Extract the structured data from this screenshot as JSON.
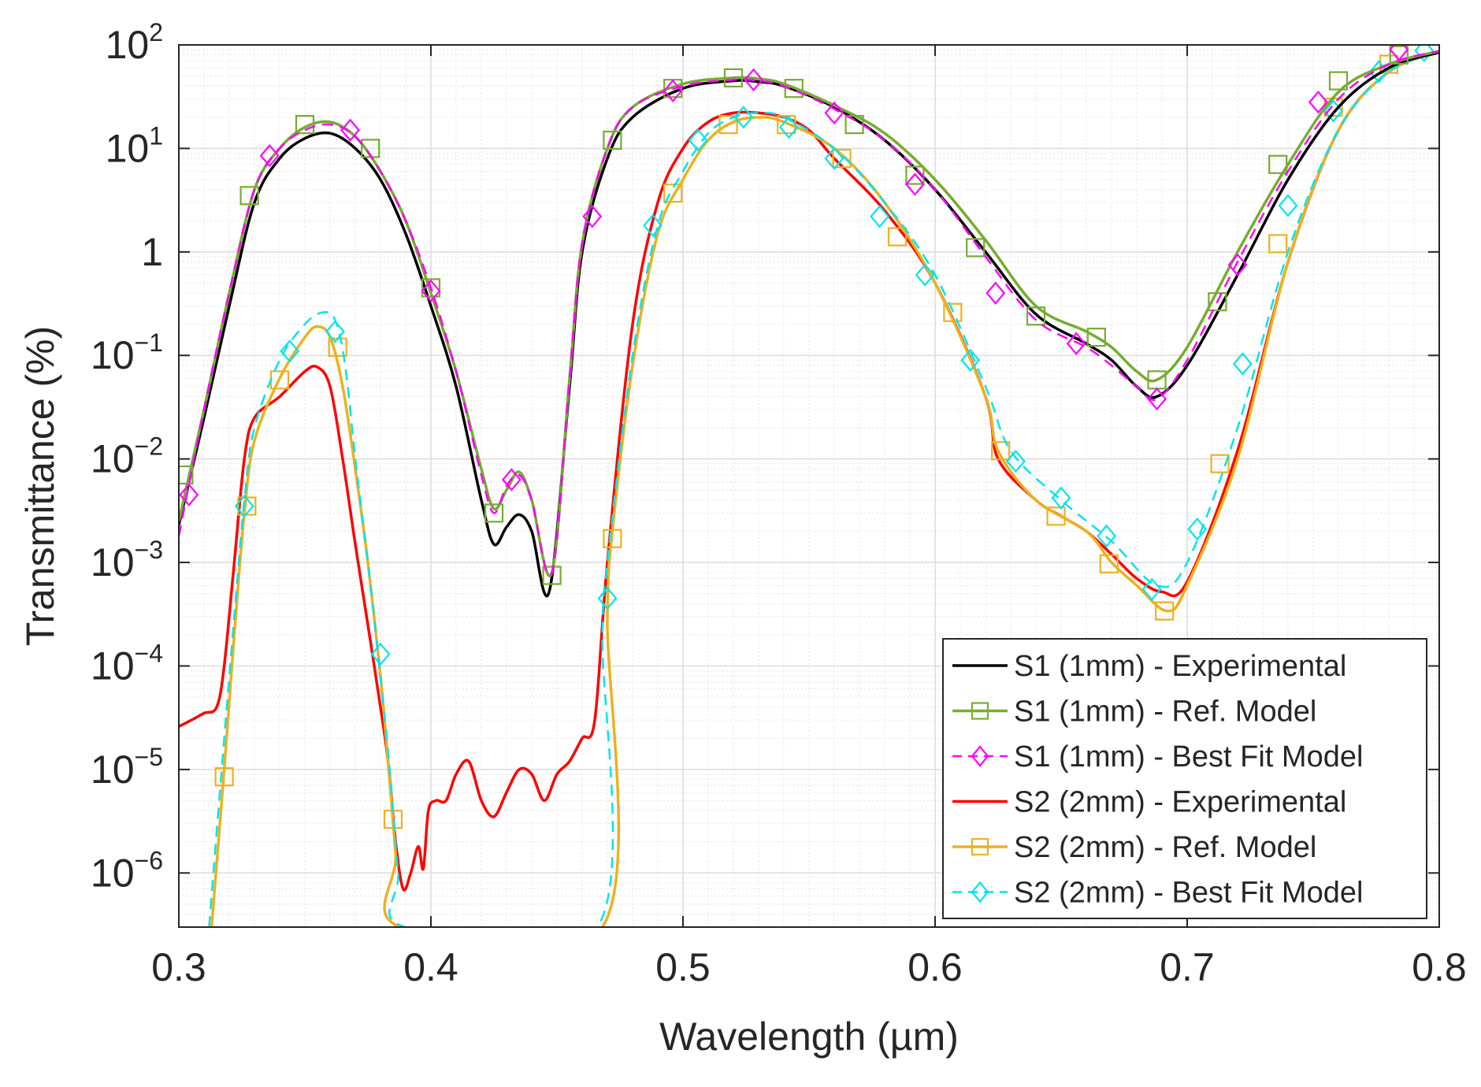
{
  "chart_data": {
    "type": "line",
    "title": "",
    "xlabel": "Wavelength (µm)",
    "ylabel": "Transmittance (%)",
    "xscale": "linear",
    "yscale": "log",
    "xlim": [
      0.3,
      0.8
    ],
    "ylim": [
      3e-07,
      100
    ],
    "xticks": [
      0.3,
      0.4,
      0.5,
      0.6,
      0.7,
      0.8
    ],
    "xtick_labels": [
      "0.3",
      "0.4",
      "0.5",
      "0.6",
      "0.7",
      "0.8"
    ],
    "yticks": [
      1e-06,
      1e-05,
      0.0001,
      0.001,
      0.01,
      0.1,
      1,
      10,
      100
    ],
    "ytick_labels": [
      {
        "base": "10",
        "exp": "−6"
      },
      {
        "base": "10",
        "exp": "−5"
      },
      {
        "base": "10",
        "exp": "−4"
      },
      {
        "base": "10",
        "exp": "−3"
      },
      {
        "base": "10",
        "exp": "−2"
      },
      {
        "base": "10",
        "exp": "−1"
      },
      {
        "base": "1",
        "exp": ""
      },
      {
        "base": "10",
        "exp": "1"
      },
      {
        "base": "10",
        "exp": "2"
      }
    ],
    "grid": true,
    "legend_position": "bottom-right",
    "series": [
      {
        "name": "S1 (1mm) - Experimental",
        "color": "#000000",
        "dash": "solid",
        "marker": "none",
        "x": [
          0.3,
          0.31,
          0.32,
          0.33,
          0.34,
          0.35,
          0.36,
          0.37,
          0.38,
          0.39,
          0.4,
          0.41,
          0.42,
          0.425,
          0.43,
          0.435,
          0.44,
          0.447,
          0.455,
          0.46,
          0.47,
          0.48,
          0.5,
          0.52,
          0.53,
          0.54,
          0.56,
          0.58,
          0.6,
          0.62,
          0.64,
          0.66,
          0.67,
          0.68,
          0.688,
          0.7,
          0.72,
          0.74,
          0.76,
          0.78,
          0.8
        ],
        "y": [
          0.0023,
          0.025,
          0.3,
          3.0,
          8.0,
          12.5,
          14.0,
          10.0,
          5.0,
          1.5,
          0.3,
          0.05,
          0.004,
          0.0015,
          0.0022,
          0.0029,
          0.002,
          0.00053,
          0.05,
          1.0,
          8.0,
          20.0,
          38.0,
          45.0,
          44.0,
          40.0,
          25.0,
          12.0,
          4.0,
          1.0,
          0.25,
          0.13,
          0.09,
          0.05,
          0.04,
          0.08,
          0.6,
          5.0,
          25.0,
          60.0,
          85.0
        ]
      },
      {
        "name": "S1 (1mm) - Ref. Model",
        "color": "#77AC30",
        "dash": "solid",
        "marker": "square",
        "x": [
          0.3,
          0.31,
          0.32,
          0.33,
          0.34,
          0.35,
          0.36,
          0.37,
          0.38,
          0.39,
          0.4,
          0.41,
          0.42,
          0.425,
          0.43,
          0.435,
          0.44,
          0.448,
          0.455,
          0.46,
          0.47,
          0.48,
          0.5,
          0.52,
          0.53,
          0.54,
          0.56,
          0.58,
          0.6,
          0.62,
          0.64,
          0.66,
          0.67,
          0.68,
          0.688,
          0.7,
          0.72,
          0.74,
          0.76,
          0.78,
          0.8
        ],
        "y": [
          0.0025,
          0.03,
          0.4,
          4.0,
          10.0,
          16.0,
          18.0,
          13.0,
          6.0,
          2.0,
          0.4,
          0.07,
          0.008,
          0.0033,
          0.005,
          0.0075,
          0.004,
          0.0008,
          0.06,
          1.2,
          10.0,
          25.0,
          42.0,
          48.0,
          47.0,
          42.0,
          26.0,
          14.0,
          5.0,
          1.3,
          0.3,
          0.17,
          0.12,
          0.07,
          0.058,
          0.12,
          1.0,
          7.0,
          35.0,
          65.0,
          87.0
        ],
        "markers_x": [
          0.302,
          0.328,
          0.35,
          0.376,
          0.4,
          0.425,
          0.448,
          0.472,
          0.496,
          0.52,
          0.544,
          0.568,
          0.592,
          0.616,
          0.64,
          0.664,
          0.688,
          0.712,
          0.736,
          0.76,
          0.784
        ],
        "markers_y": [
          0.007,
          3.5,
          17.0,
          10.0,
          0.45,
          0.003,
          0.00075,
          12.0,
          38.0,
          48.0,
          38.0,
          17.0,
          5.5,
          1.1,
          0.24,
          0.15,
          0.058,
          0.33,
          7.0,
          45.0,
          80.0
        ]
      },
      {
        "name": "S1 (1mm) - Best Fit Model",
        "color": "#FF00FF",
        "dash": "dashed",
        "marker": "diamond",
        "x": [
          0.3,
          0.31,
          0.32,
          0.33,
          0.34,
          0.35,
          0.36,
          0.37,
          0.38,
          0.39,
          0.4,
          0.41,
          0.42,
          0.425,
          0.43,
          0.435,
          0.44,
          0.448,
          0.455,
          0.46,
          0.47,
          0.48,
          0.5,
          0.52,
          0.53,
          0.54,
          0.56,
          0.58,
          0.6,
          0.62,
          0.64,
          0.66,
          0.67,
          0.68,
          0.688,
          0.7,
          0.72,
          0.74,
          0.76,
          0.78,
          0.8
        ],
        "y": [
          0.0018,
          0.03,
          0.4,
          4.0,
          10.0,
          15.0,
          17.0,
          13.0,
          6.0,
          2.0,
          0.45,
          0.07,
          0.007,
          0.003,
          0.0055,
          0.007,
          0.004,
          0.0008,
          0.06,
          1.2,
          10.0,
          25.0,
          40.0,
          46.0,
          45.0,
          40.0,
          24.0,
          12.0,
          4.0,
          0.9,
          0.22,
          0.12,
          0.08,
          0.05,
          0.038,
          0.09,
          0.8,
          6.0,
          30.0,
          65.0,
          87.0
        ],
        "markers_x": [
          0.304,
          0.336,
          0.368,
          0.4,
          0.432,
          0.464,
          0.496,
          0.528,
          0.56,
          0.592,
          0.624,
          0.656,
          0.688,
          0.72,
          0.752,
          0.784
        ],
        "markers_y": [
          0.0045,
          8.5,
          15.0,
          0.42,
          0.0063,
          2.2,
          36.0,
          46.0,
          22.0,
          4.5,
          0.4,
          0.13,
          0.038,
          0.75,
          28.0,
          90.0
        ]
      },
      {
        "name": "S2 (2mm) - Experimental",
        "color": "#FF0000",
        "dash": "solid",
        "marker": "none",
        "x": [
          0.3,
          0.305,
          0.31,
          0.315,
          0.318,
          0.322,
          0.326,
          0.33,
          0.34,
          0.35,
          0.355,
          0.36,
          0.365,
          0.37,
          0.375,
          0.38,
          0.383,
          0.386,
          0.389,
          0.392,
          0.395,
          0.397,
          0.399,
          0.402,
          0.406,
          0.41,
          0.415,
          0.42,
          0.425,
          0.43,
          0.435,
          0.44,
          0.445,
          0.45,
          0.455,
          0.46,
          0.465,
          0.47,
          0.48,
          0.49,
          0.5,
          0.51,
          0.52,
          0.53,
          0.54,
          0.55,
          0.56,
          0.58,
          0.6,
          0.62,
          0.625,
          0.64,
          0.65,
          0.66,
          0.67,
          0.68,
          0.69,
          0.7,
          0.72,
          0.74,
          0.76,
          0.78,
          0.8
        ],
        "y": [
          2.6e-05,
          3e-05,
          3.5e-05,
          4e-05,
          0.0001,
          0.001,
          0.01,
          0.025,
          0.04,
          0.07,
          0.077,
          0.05,
          0.01,
          0.0015,
          0.00025,
          4e-05,
          1.2e-05,
          2e-06,
          7e-07,
          1e-06,
          1.8e-06,
          1.1e-06,
          4e-06,
          5e-06,
          5e-06,
          9e-06,
          1.2e-05,
          5e-06,
          3.5e-06,
          6e-06,
          1e-05,
          9e-06,
          5e-06,
          9e-06,
          1.2e-05,
          2e-05,
          3e-05,
          0.001,
          0.2,
          3.0,
          10.0,
          18.0,
          22.0,
          22.0,
          20.0,
          15.0,
          8.0,
          2.5,
          0.5,
          0.04,
          0.01,
          0.004,
          0.0028,
          0.002,
          0.0012,
          0.0007,
          0.00052,
          0.00065,
          0.012,
          0.8,
          15.0,
          55.0,
          85.0
        ]
      },
      {
        "name": "S2 (2mm) - Ref. Model",
        "color": "#EDB120",
        "dash": "solid",
        "marker": "square",
        "x": [
          0.313,
          0.318,
          0.322,
          0.326,
          0.33,
          0.34,
          0.35,
          0.355,
          0.36,
          0.365,
          0.37,
          0.375,
          0.38,
          0.383,
          0.386,
          0.388,
          0.468,
          0.47,
          0.472,
          0.48,
          0.49,
          0.5,
          0.51,
          0.52,
          0.53,
          0.54,
          0.56,
          0.58,
          0.6,
          0.62,
          0.625,
          0.64,
          0.66,
          0.67,
          0.68,
          0.692,
          0.7,
          0.72,
          0.74,
          0.76,
          0.78,
          0.8
        ],
        "y": [
          3e-07,
          1e-05,
          0.0002,
          0.003,
          0.015,
          0.06,
          0.15,
          0.19,
          0.15,
          0.05,
          0.008,
          0.001,
          8e-05,
          1.2e-05,
          1.5e-06,
          3e-07,
          3e-07,
          0.0003,
          0.002,
          0.08,
          1.5,
          5.0,
          12.0,
          18.0,
          20.0,
          18.0,
          10.0,
          3.0,
          0.5,
          0.04,
          0.012,
          0.004,
          0.002,
          0.001,
          0.0006,
          0.00034,
          0.0006,
          0.01,
          0.8,
          15.0,
          55.0,
          85.0
        ],
        "markers_x": [
          0.318,
          0.327,
          0.34,
          0.363,
          0.385,
          0.472,
          0.496,
          0.518,
          0.541,
          0.563,
          0.585,
          0.607,
          0.626,
          0.648,
          0.669,
          0.691,
          0.713,
          0.736,
          0.758,
          0.78
        ],
        "markers_y": [
          8.5e-06,
          0.0035,
          0.058,
          0.12,
          3.3e-06,
          0.0017,
          3.7,
          17.0,
          17.0,
          8.0,
          1.4,
          0.26,
          0.012,
          0.0028,
          0.00097,
          0.00034,
          0.009,
          1.2,
          25.0,
          65.0
        ]
      },
      {
        "name": "S2 (2mm) - Best Fit Model",
        "color": "#00E5EE",
        "dash": "dashed",
        "marker": "diamond",
        "x": [
          0.312,
          0.317,
          0.322,
          0.326,
          0.33,
          0.34,
          0.35,
          0.357,
          0.362,
          0.366,
          0.37,
          0.375,
          0.38,
          0.384,
          0.387,
          0.39,
          0.466,
          0.468,
          0.47,
          0.48,
          0.49,
          0.5,
          0.51,
          0.52,
          0.53,
          0.54,
          0.56,
          0.58,
          0.6,
          0.62,
          0.63,
          0.65,
          0.67,
          0.688,
          0.7,
          0.72,
          0.74,
          0.76,
          0.78,
          0.8
        ],
        "y": [
          3e-07,
          1e-05,
          0.0003,
          0.004,
          0.02,
          0.09,
          0.2,
          0.26,
          0.22,
          0.08,
          0.01,
          0.001,
          8e-05,
          8e-06,
          1e-06,
          3e-07,
          3e-07,
          0.0002,
          0.001,
          0.1,
          1.8,
          6.0,
          14.0,
          20.0,
          22.0,
          20.0,
          10.0,
          3.0,
          0.6,
          0.05,
          0.012,
          0.004,
          0.0016,
          0.0006,
          0.001,
          0.02,
          1.0,
          15.0,
          55.0,
          85.0
        ],
        "markers_x": [
          0.326,
          0.344,
          0.362,
          0.38,
          0.47,
          0.488,
          0.506,
          0.524,
          0.542,
          0.56,
          0.578,
          0.596,
          0.614,
          0.632,
          0.65,
          0.668,
          0.686,
          0.704,
          0.722,
          0.74,
          0.758,
          0.776,
          0.794
        ],
        "markers_y": [
          0.0035,
          0.11,
          0.17,
          0.00013,
          0.00045,
          1.8,
          12.0,
          20.0,
          16.0,
          8.0,
          2.2,
          0.6,
          0.09,
          0.0095,
          0.0042,
          0.0018,
          0.00055,
          0.0021,
          0.083,
          2.8,
          23.0,
          55.0,
          88.0
        ]
      }
    ]
  }
}
